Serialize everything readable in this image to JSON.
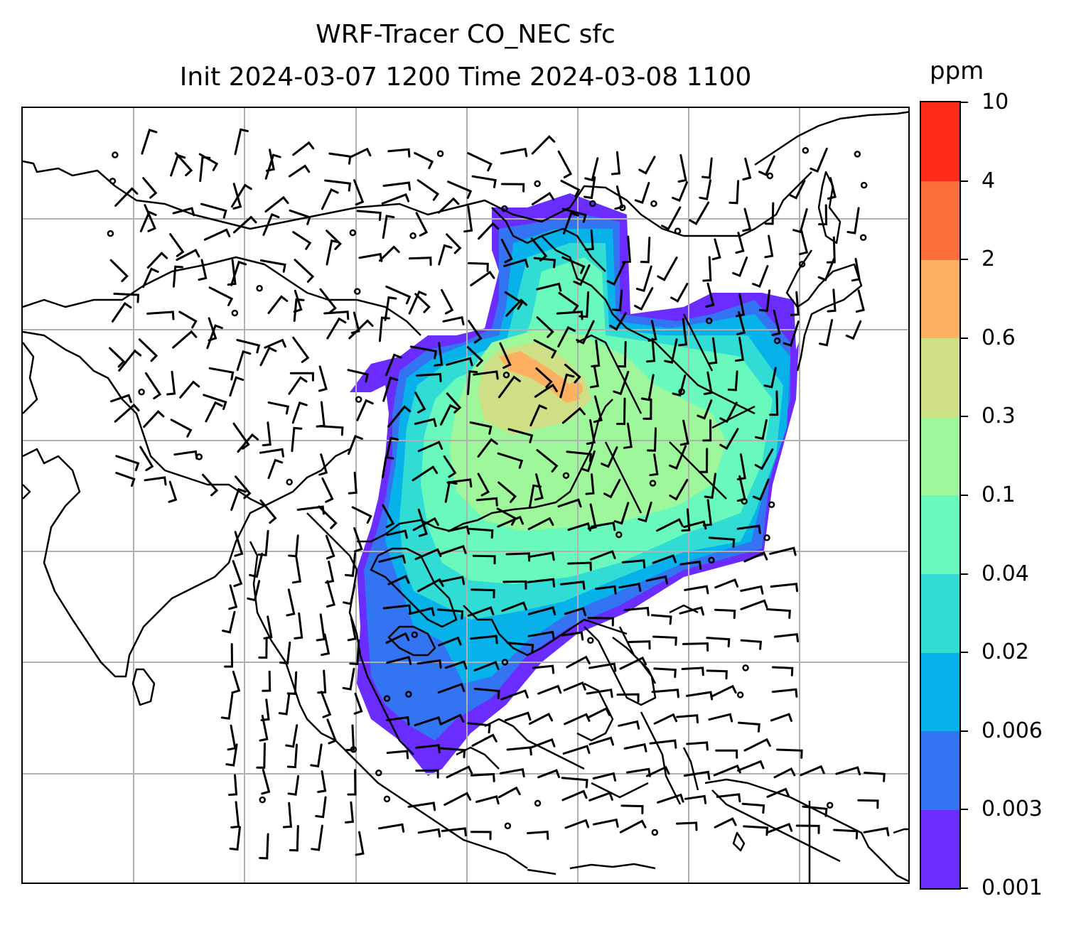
{
  "title": {
    "line1": "WRF-Tracer CO_NEC sfc",
    "line2": "Init 2024-03-07 1200 Time 2024-03-08 1100"
  },
  "colorbar": {
    "unit": "ppm",
    "levels": [
      "0.001",
      "0.003",
      "0.006",
      "0.02",
      "0.04",
      "0.1",
      "0.3",
      "0.6",
      "2",
      "4",
      "10"
    ],
    "colors": [
      "#6a2cff",
      "#3374f3",
      "#07b1ea",
      "#31dcd5",
      "#69f9bd",
      "#9ef79a",
      "#cedf85",
      "#fdb05f",
      "#ff6e3d",
      "#ff2a1a"
    ]
  },
  "map": {
    "gridline_color": "#b0b0b0",
    "coastline_color": "#000000",
    "wind_barb_color": "#000000"
  }
}
